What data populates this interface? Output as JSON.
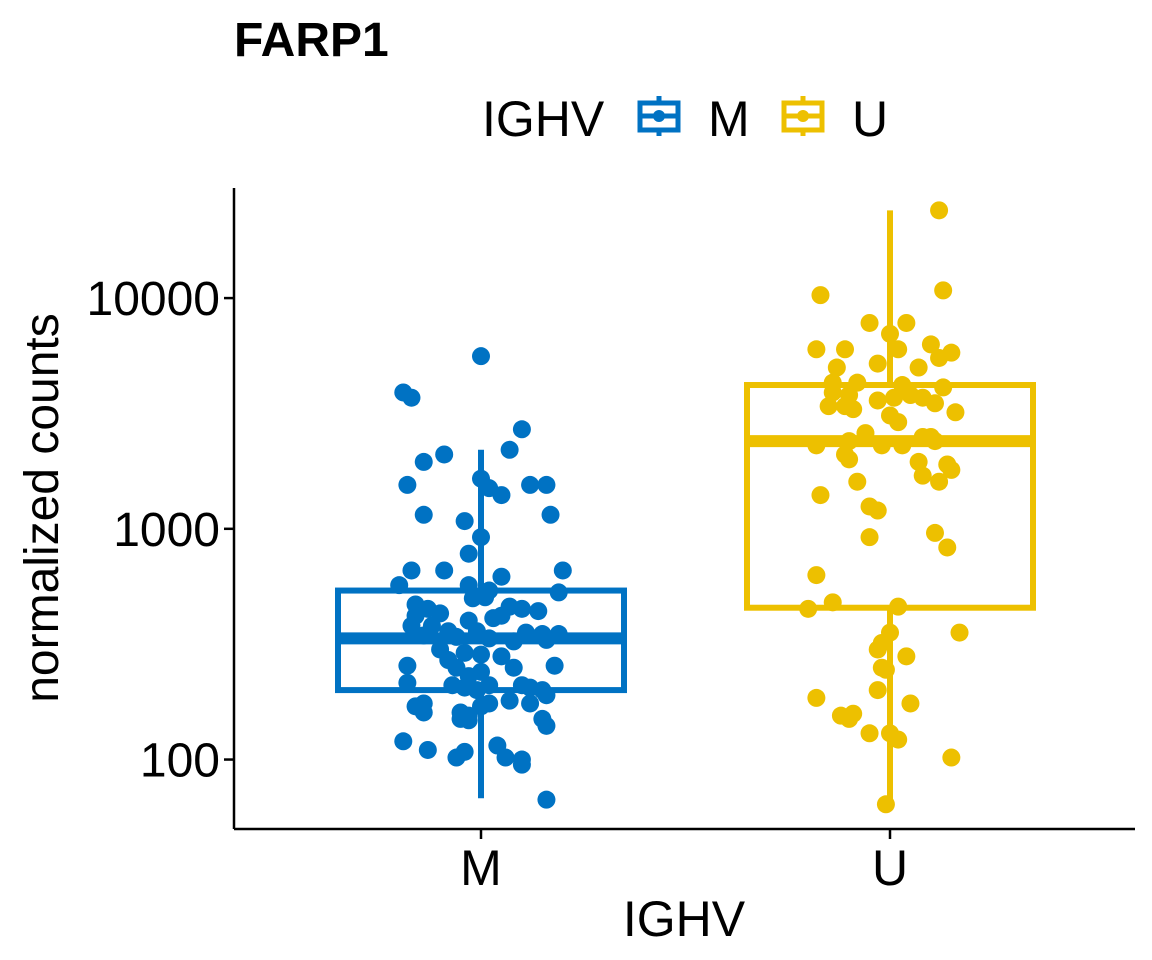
{
  "chart_data": {
    "type": "boxplot",
    "title": "FARP1",
    "xlabel": "IGHV",
    "ylabel": "normalized counts",
    "yscale": "log10",
    "ylim": [
      50,
      30000
    ],
    "yticks": [
      100,
      1000,
      10000
    ],
    "ytick_labels": [
      "100",
      "1000",
      "10000"
    ],
    "categories": [
      "M",
      "U"
    ],
    "legend": {
      "title": "IGHV",
      "position": "top",
      "entries": [
        "M",
        "U"
      ]
    },
    "colors": {
      "M": "#0072C3",
      "U": "#EDC000"
    },
    "grid": false,
    "boxes": [
      {
        "group": "M",
        "whisker_low": 68,
        "q1": 200,
        "median": 335,
        "q3": 540,
        "whisker_high": 2200
      },
      {
        "group": "U",
        "whisker_low": 64,
        "q1": 455,
        "median": 2400,
        "q3": 4200,
        "whisker_high": 24000
      }
    ],
    "points": {
      "M": [
        {
          "dx": -0.19,
          "y": 3900
        },
        {
          "dx": -0.17,
          "y": 3700
        },
        {
          "dx": 0.0,
          "y": 5600
        },
        {
          "dx": -0.14,
          "y": 1950
        },
        {
          "dx": -0.09,
          "y": 2100
        },
        {
          "dx": 0.07,
          "y": 2200
        },
        {
          "dx": 0.1,
          "y": 2700
        },
        {
          "dx": -0.18,
          "y": 1550
        },
        {
          "dx": 0.0,
          "y": 1650
        },
        {
          "dx": 0.02,
          "y": 1500
        },
        {
          "dx": 0.05,
          "y": 1400
        },
        {
          "dx": 0.12,
          "y": 1550
        },
        {
          "dx": 0.16,
          "y": 1550
        },
        {
          "dx": -0.14,
          "y": 1150
        },
        {
          "dx": -0.04,
          "y": 1080
        },
        {
          "dx": 0.17,
          "y": 1150
        },
        {
          "dx": 0.0,
          "y": 920
        },
        {
          "dx": -0.03,
          "y": 780
        },
        {
          "dx": -0.17,
          "y": 660
        },
        {
          "dx": -0.09,
          "y": 660
        },
        {
          "dx": 0.05,
          "y": 620
        },
        {
          "dx": 0.2,
          "y": 660
        },
        {
          "dx": -0.2,
          "y": 570
        },
        {
          "dx": -0.03,
          "y": 570
        },
        {
          "dx": 0.02,
          "y": 540
        },
        {
          "dx": -0.02,
          "y": 500
        },
        {
          "dx": 0.01,
          "y": 505
        },
        {
          "dx": 0.19,
          "y": 530
        },
        {
          "dx": -0.16,
          "y": 470
        },
        {
          "dx": -0.13,
          "y": 450
        },
        {
          "dx": -0.1,
          "y": 430
        },
        {
          "dx": 0.07,
          "y": 460
        },
        {
          "dx": 0.1,
          "y": 450
        },
        {
          "dx": 0.14,
          "y": 440
        },
        {
          "dx": -0.16,
          "y": 420
        },
        {
          "dx": -0.03,
          "y": 400
        },
        {
          "dx": 0.03,
          "y": 410
        },
        {
          "dx": 0.05,
          "y": 420
        },
        {
          "dx": -0.17,
          "y": 380
        },
        {
          "dx": -0.12,
          "y": 380
        },
        {
          "dx": -0.08,
          "y": 360
        },
        {
          "dx": -0.01,
          "y": 360
        },
        {
          "dx": 0.11,
          "y": 355
        },
        {
          "dx": 0.15,
          "y": 350
        },
        {
          "dx": 0.19,
          "y": 350
        },
        {
          "dx": -0.14,
          "y": 345
        },
        {
          "dx": -0.06,
          "y": 340
        },
        {
          "dx": 0.02,
          "y": 335
        },
        {
          "dx": 0.08,
          "y": 325
        },
        {
          "dx": 0.16,
          "y": 330
        },
        {
          "dx": -0.1,
          "y": 300
        },
        {
          "dx": -0.04,
          "y": 290
        },
        {
          "dx": 0.0,
          "y": 285
        },
        {
          "dx": 0.05,
          "y": 280
        },
        {
          "dx": -0.08,
          "y": 270
        },
        {
          "dx": -0.18,
          "y": 255
        },
        {
          "dx": -0.06,
          "y": 250
        },
        {
          "dx": 0.0,
          "y": 240
        },
        {
          "dx": 0.08,
          "y": 250
        },
        {
          "dx": 0.18,
          "y": 255
        },
        {
          "dx": -0.03,
          "y": 230
        },
        {
          "dx": -0.18,
          "y": 215
        },
        {
          "dx": -0.07,
          "y": 210
        },
        {
          "dx": -0.04,
          "y": 205
        },
        {
          "dx": -0.01,
          "y": 200
        },
        {
          "dx": 0.02,
          "y": 210
        },
        {
          "dx": 0.1,
          "y": 210
        },
        {
          "dx": 0.12,
          "y": 205
        },
        {
          "dx": 0.15,
          "y": 200
        },
        {
          "dx": 0.16,
          "y": 190
        },
        {
          "dx": -0.14,
          "y": 175
        },
        {
          "dx": -0.16,
          "y": 170
        },
        {
          "dx": -0.14,
          "y": 160
        },
        {
          "dx": -0.05,
          "y": 160
        },
        {
          "dx": -0.03,
          "y": 155
        },
        {
          "dx": 0.0,
          "y": 170
        },
        {
          "dx": 0.02,
          "y": 175
        },
        {
          "dx": 0.07,
          "y": 180
        },
        {
          "dx": 0.12,
          "y": 175
        },
        {
          "dx": -0.05,
          "y": 150
        },
        {
          "dx": -0.03,
          "y": 148
        },
        {
          "dx": 0.15,
          "y": 150
        },
        {
          "dx": 0.16,
          "y": 140
        },
        {
          "dx": -0.19,
          "y": 120
        },
        {
          "dx": -0.13,
          "y": 110
        },
        {
          "dx": -0.04,
          "y": 108
        },
        {
          "dx": -0.06,
          "y": 102
        },
        {
          "dx": 0.04,
          "y": 115
        },
        {
          "dx": 0.06,
          "y": 102
        },
        {
          "dx": 0.1,
          "y": 100
        },
        {
          "dx": 0.1,
          "y": 95
        },
        {
          "dx": 0.16,
          "y": 67
        }
      ],
      "U": [
        {
          "dx": 0.12,
          "y": 24000
        },
        {
          "dx": -0.17,
          "y": 10300
        },
        {
          "dx": 0.13,
          "y": 10800
        },
        {
          "dx": -0.05,
          "y": 7800
        },
        {
          "dx": 0.04,
          "y": 7800
        },
        {
          "dx": 0.0,
          "y": 7000
        },
        {
          "dx": -0.18,
          "y": 6000
        },
        {
          "dx": -0.11,
          "y": 6000
        },
        {
          "dx": 0.02,
          "y": 6000
        },
        {
          "dx": 0.1,
          "y": 6300
        },
        {
          "dx": 0.15,
          "y": 5800
        },
        {
          "dx": -0.13,
          "y": 5000
        },
        {
          "dx": -0.03,
          "y": 5200
        },
        {
          "dx": 0.07,
          "y": 5000
        },
        {
          "dx": 0.12,
          "y": 5500
        },
        {
          "dx": -0.14,
          "y": 4300
        },
        {
          "dx": -0.08,
          "y": 4300
        },
        {
          "dx": 0.03,
          "y": 4200
        },
        {
          "dx": 0.13,
          "y": 4100
        },
        {
          "dx": -0.14,
          "y": 3900
        },
        {
          "dx": -0.1,
          "y": 3800
        },
        {
          "dx": -0.03,
          "y": 3600
        },
        {
          "dx": 0.01,
          "y": 3700
        },
        {
          "dx": 0.05,
          "y": 3800
        },
        {
          "dx": 0.08,
          "y": 3700
        },
        {
          "dx": -0.15,
          "y": 3400
        },
        {
          "dx": -0.11,
          "y": 3400
        },
        {
          "dx": -0.09,
          "y": 3300
        },
        {
          "dx": 0.0,
          "y": 3100
        },
        {
          "dx": 0.11,
          "y": 3500
        },
        {
          "dx": 0.16,
          "y": 3200
        },
        {
          "dx": 0.02,
          "y": 2900
        },
        {
          "dx": -0.06,
          "y": 2600
        },
        {
          "dx": 0.08,
          "y": 2500
        },
        {
          "dx": -0.18,
          "y": 2300
        },
        {
          "dx": -0.1,
          "y": 2400
        },
        {
          "dx": -0.11,
          "y": 2100
        },
        {
          "dx": -0.1,
          "y": 2000
        },
        {
          "dx": -0.02,
          "y": 2300
        },
        {
          "dx": 0.03,
          "y": 2300
        },
        {
          "dx": 0.1,
          "y": 2500
        },
        {
          "dx": 0.11,
          "y": 2400
        },
        {
          "dx": 0.15,
          "y": 1800
        },
        {
          "dx": 0.14,
          "y": 1900
        },
        {
          "dx": 0.07,
          "y": 1950
        },
        {
          "dx": 0.08,
          "y": 1700
        },
        {
          "dx": 0.12,
          "y": 1600
        },
        {
          "dx": -0.08,
          "y": 1600
        },
        {
          "dx": -0.17,
          "y": 1400
        },
        {
          "dx": -0.05,
          "y": 1250
        },
        {
          "dx": -0.03,
          "y": 1200
        },
        {
          "dx": -0.05,
          "y": 920
        },
        {
          "dx": 0.11,
          "y": 960
        },
        {
          "dx": 0.14,
          "y": 830
        },
        {
          "dx": -0.18,
          "y": 630
        },
        {
          "dx": -0.14,
          "y": 480
        },
        {
          "dx": -0.2,
          "y": 450
        },
        {
          "dx": 0.02,
          "y": 460
        },
        {
          "dx": -0.02,
          "y": 320
        },
        {
          "dx": 0.0,
          "y": 355
        },
        {
          "dx": -0.03,
          "y": 300
        },
        {
          "dx": 0.04,
          "y": 280
        },
        {
          "dx": 0.17,
          "y": 355
        },
        {
          "dx": -0.02,
          "y": 250
        },
        {
          "dx": -0.01,
          "y": 245
        },
        {
          "dx": -0.03,
          "y": 200
        },
        {
          "dx": 0.05,
          "y": 175
        },
        {
          "dx": -0.18,
          "y": 185
        },
        {
          "dx": -0.12,
          "y": 155
        },
        {
          "dx": -0.09,
          "y": 158
        },
        {
          "dx": -0.1,
          "y": 150
        },
        {
          "dx": -0.05,
          "y": 130
        },
        {
          "dx": 0.0,
          "y": 130
        },
        {
          "dx": 0.02,
          "y": 122
        },
        {
          "dx": 0.15,
          "y": 102
        },
        {
          "dx": -0.01,
          "y": 64
        }
      ]
    }
  }
}
